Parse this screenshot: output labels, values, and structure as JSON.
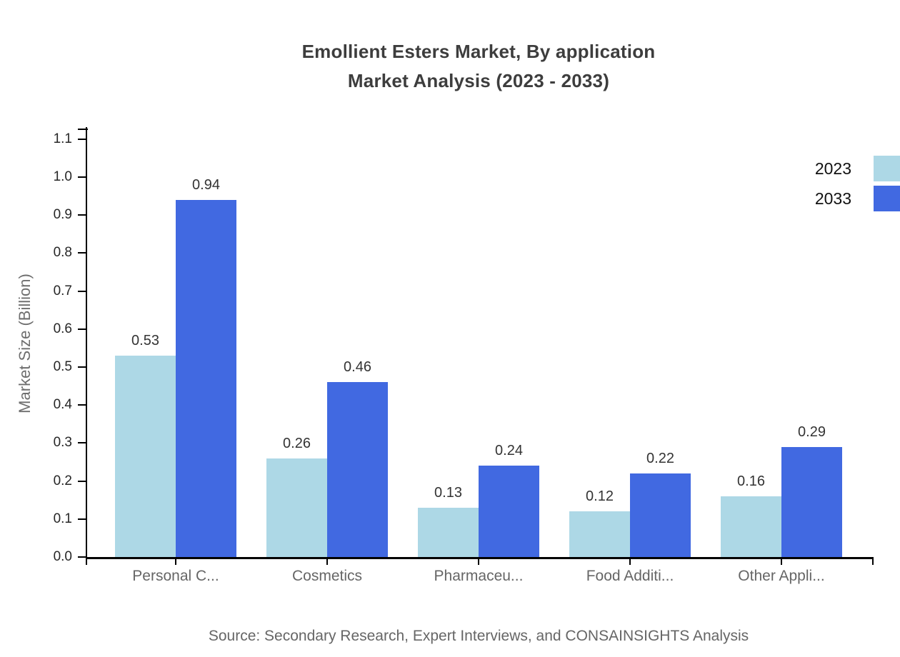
{
  "chart_data": {
    "type": "bar",
    "title_line1": "Emollient Esters Market, By application",
    "title_line2": "Market Analysis (2023 - 2033)",
    "ylabel": "Market Size (Billion)",
    "ylim": [
      0.0,
      1.1
    ],
    "ytick_step": 0.1,
    "grid": false,
    "legend_position": "top-right",
    "categories": [
      "Personal C...",
      "Cosmetics",
      "Pharmaceu...",
      "Food Additi...",
      "Other Appli..."
    ],
    "series": [
      {
        "name": "2023",
        "color": "#ADD8E6",
        "values": [
          0.53,
          0.26,
          0.13,
          0.12,
          0.16
        ]
      },
      {
        "name": "2033",
        "color": "#4169E1",
        "values": [
          0.94,
          0.46,
          0.24,
          0.22,
          0.29
        ]
      }
    ],
    "value_label_format": "0.00",
    "source": "Source: Secondary Research, Expert Interviews, and CONSAINSIGHTS Analysis",
    "axis_color": "#000000",
    "title_color": "#3d3d3d",
    "label_color": "#666666"
  }
}
